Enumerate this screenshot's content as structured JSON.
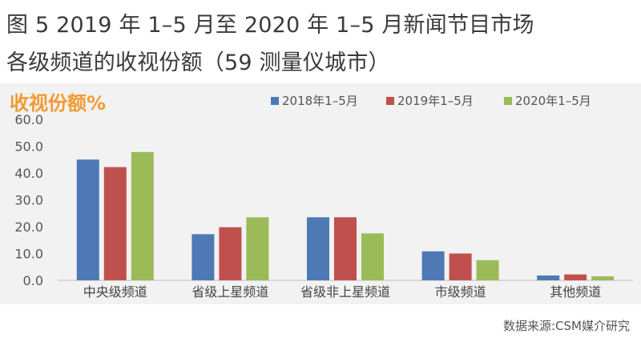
{
  "title": {
    "line1": "图 5 2019 年 1–5 月至 2020 年 1–5 月新闻节目市场",
    "line2": "各级频道的收视份额（59 测量仪城市）"
  },
  "source": "数据来源:CSM媒介研究",
  "chart_data": {
    "type": "bar",
    "ylabel": "收视份额%",
    "xlabel": "",
    "ylim": [
      0,
      60
    ],
    "yticks": [
      "0.0",
      "10.0",
      "20.0",
      "30.0",
      "40.0",
      "50.0",
      "60.0"
    ],
    "categories": [
      "中央级频道",
      "省级上星频道",
      "省级非上星频道",
      "市级频道",
      "其他频道"
    ],
    "series": [
      {
        "name": "2018年1–5月",
        "color": "#4e79b5",
        "values": [
          45.0,
          17.2,
          23.5,
          10.8,
          1.8
        ]
      },
      {
        "name": "2019年1–5月",
        "color": "#c0504d",
        "values": [
          42.2,
          19.8,
          23.5,
          10.0,
          2.2
        ]
      },
      {
        "name": "2020年1–5月",
        "color": "#9bbb59",
        "values": [
          47.8,
          23.5,
          17.5,
          7.5,
          1.5
        ]
      }
    ],
    "legend_position": "top-right",
    "grid": false
  }
}
